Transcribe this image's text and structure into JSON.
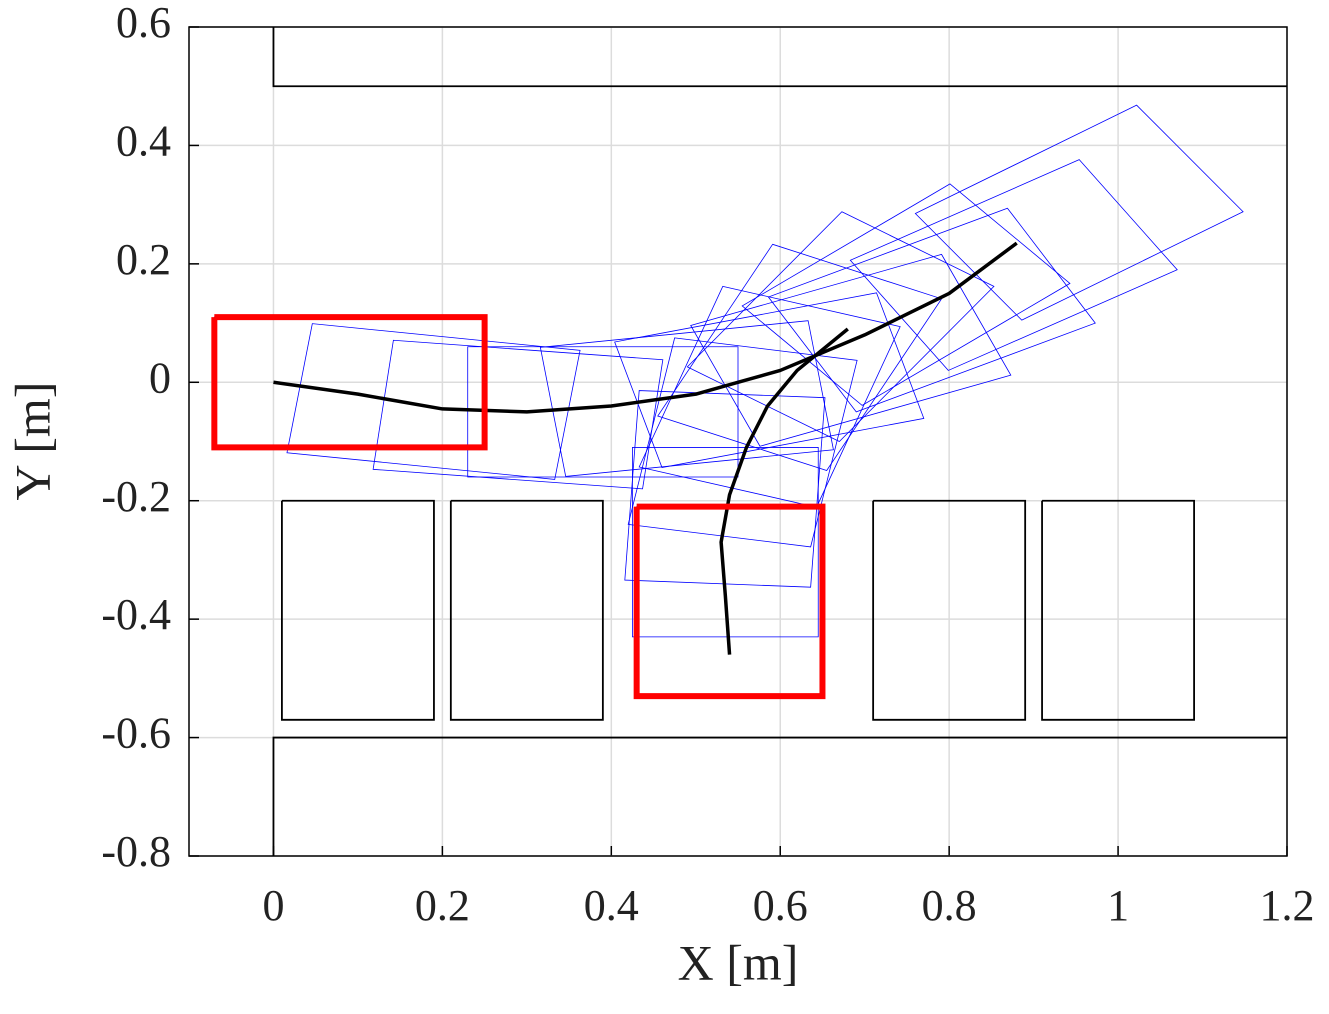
{
  "chart_data": {
    "type": "line",
    "xlabel": "X [m]",
    "ylabel": "Y [m]",
    "xlim": [
      -0.1,
      1.2
    ],
    "ylim": [
      -0.8,
      0.6
    ],
    "xticks": [
      0,
      0.2,
      0.4,
      0.6,
      0.8,
      1,
      1.2
    ],
    "yticks": [
      -0.8,
      -0.6,
      -0.4,
      -0.2,
      0,
      0.2,
      0.4,
      0.6
    ],
    "grid": true,
    "obstacle_color": "#000000",
    "obstacles": [
      {
        "x": [
          0,
          0,
          1.2
        ],
        "y": [
          0.6,
          0.5,
          0.5
        ]
      },
      {
        "x": [
          0,
          0,
          1.2
        ],
        "y": [
          -0.8,
          -0.6,
          -0.6
        ]
      },
      {
        "x": [
          0.01,
          0.19,
          0.19,
          0.01,
          0.01
        ],
        "y": [
          -0.2,
          -0.2,
          -0.57,
          -0.57,
          -0.2
        ]
      },
      {
        "x": [
          0.21,
          0.39,
          0.39,
          0.21,
          0.21
        ],
        "y": [
          -0.2,
          -0.2,
          -0.57,
          -0.57,
          -0.2
        ]
      },
      {
        "x": [
          0.71,
          0.89,
          0.89,
          0.71,
          0.71
        ],
        "y": [
          -0.2,
          -0.2,
          -0.57,
          -0.57,
          -0.2
        ]
      },
      {
        "x": [
          0.91,
          1.09,
          1.09,
          0.91,
          0.91
        ],
        "y": [
          -0.2,
          -0.2,
          -0.57,
          -0.57,
          -0.2
        ]
      }
    ],
    "footprint_color": "#0000ff",
    "footprints": [
      {
        "x": [
          0.25,
          0.25,
          -0.07,
          -0.07
        ],
        "y": [
          0.11,
          -0.11,
          -0.11,
          0.11
        ]
      },
      {
        "x": [
          0.363,
          0.333,
          0.016,
          0.046
        ],
        "y": [
          0.054,
          -0.164,
          -0.119,
          0.099
        ]
      },
      {
        "x": [
          0.461,
          0.437,
          0.118,
          0.142
        ],
        "y": [
          0.038,
          -0.18,
          -0.147,
          0.071
        ]
      },
      {
        "x": [
          0.55,
          0.55,
          0.23,
          0.23
        ],
        "y": [
          0.06,
          -0.16,
          -0.16,
          0.06
        ]
      },
      {
        "x": [
          0.633,
          0.663,
          0.346,
          0.316
        ],
        "y": [
          0.104,
          -0.114,
          -0.159,
          0.059
        ]
      },
      {
        "x": [
          0.714,
          0.77,
          0.46,
          0.404
        ],
        "y": [
          0.151,
          -0.061,
          -0.144,
          0.068
        ]
      },
      {
        "x": [
          0.791,
          0.873,
          0.576,
          0.494
        ],
        "y": [
          0.216,
          0.012,
          -0.108,
          0.096
        ]
      },
      {
        "x": [
          0.869,
          0.973,
          0.69,
          0.586
        ],
        "y": [
          0.294,
          0.1,
          -0.05,
          0.144
        ]
      },
      {
        "x": [
          0.954,
          1.07,
          0.799,
          0.683
        ],
        "y": [
          0.376,
          0.19,
          0.02,
          0.206
        ]
      },
      {
        "x": [
          1.022,
          1.148,
          0.886,
          0.76
        ],
        "y": [
          0.468,
          0.288,
          0.105,
          0.285
        ]
      },
      {
        "x": [
          0.801,
          0.943,
          0.697,
          0.555
        ],
        "y": [
          0.335,
          0.167,
          -0.039,
          0.129
        ]
      },
      {
        "x": [
          0.673,
          0.853,
          0.67,
          0.49
        ],
        "y": [
          0.288,
          0.162,
          -0.1,
          0.026
        ]
      },
      {
        "x": [
          0.591,
          0.791,
          0.655,
          0.455
        ],
        "y": [
          0.233,
          0.141,
          -0.149,
          -0.057
        ]
      },
      {
        "x": [
          0.532,
          0.742,
          0.643,
          0.433
        ],
        "y": [
          0.162,
          0.094,
          -0.211,
          -0.143
        ]
      },
      {
        "x": [
          0.475,
          0.691,
          0.636,
          0.42
        ],
        "y": [
          0.075,
          0.037,
          -0.278,
          -0.24
        ]
      },
      {
        "x": [
          0.433,
          0.653,
          0.636,
          0.416
        ],
        "y": [
          -0.014,
          -0.026,
          -0.346,
          -0.334
        ]
      },
      {
        "x": [
          0.425,
          0.645,
          0.645,
          0.425
        ],
        "y": [
          -0.11,
          -0.11,
          -0.43,
          -0.43
        ]
      },
      {
        "x": [
          0.43,
          0.65,
          0.65,
          0.43
        ],
        "y": [
          -0.21,
          -0.21,
          -0.53,
          -0.53
        ]
      }
    ],
    "trajectory_color": "#000000",
    "trajectories": [
      {
        "x": [
          0,
          0.1,
          0.2,
          0.3,
          0.4,
          0.5,
          0.6,
          0.7,
          0.8,
          0.88
        ],
        "y": [
          0,
          -0.02,
          -0.045,
          -0.05,
          -0.04,
          -0.02,
          0.02,
          0.08,
          0.15,
          0.235
        ]
      },
      {
        "x": [
          0.54,
          0.535,
          0.53,
          0.54,
          0.56,
          0.585,
          0.62,
          0.68
        ],
        "y": [
          -0.46,
          -0.36,
          -0.27,
          -0.19,
          -0.11,
          -0.04,
          0.02,
          0.09
        ]
      }
    ],
    "box_color": "#ff0000",
    "start_goal_boxes": [
      {
        "x": [
          -0.07,
          0.25,
          0.25,
          -0.07,
          -0.07
        ],
        "y": [
          0.11,
          0.11,
          -0.11,
          -0.11,
          0.11
        ]
      },
      {
        "x": [
          0.43,
          0.65,
          0.65,
          0.43,
          0.43
        ],
        "y": [
          -0.21,
          -0.21,
          -0.53,
          -0.53,
          -0.21
        ]
      }
    ]
  }
}
